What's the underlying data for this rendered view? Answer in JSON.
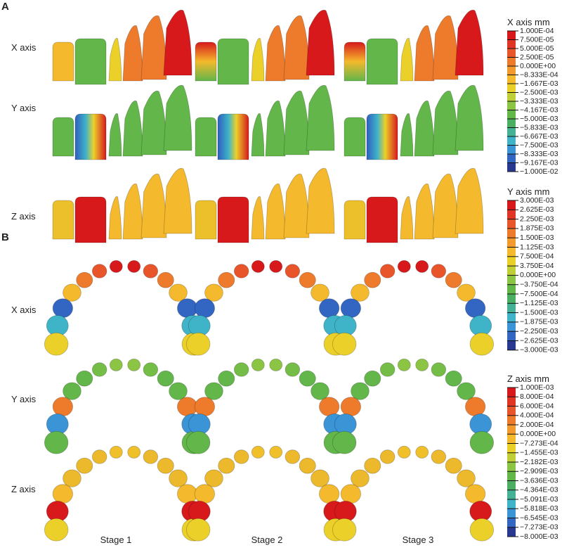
{
  "panel_labels": [
    "A",
    "B"
  ],
  "row_labels": {
    "A": [
      "X axis",
      "Y axis",
      "Z axis"
    ],
    "B": [
      "X axis",
      "Y axis",
      "Z axis"
    ]
  },
  "column_labels": [
    "Stage 1",
    "Stage 2",
    "Stage 3"
  ],
  "legend_colors": [
    "#d7191c",
    "#e03424",
    "#e8552a",
    "#ee7a2c",
    "#f29a2e",
    "#f4b92c",
    "#ecd02a",
    "#c0cf38",
    "#8cc443",
    "#62b64a",
    "#4bae62",
    "#45b296",
    "#3fb4c8",
    "#3a94d6",
    "#3366c2",
    "#28388f"
  ],
  "legends": [
    {
      "title": "X axis mm",
      "labels": [
        "1.000E-04",
        "7.500E-05",
        "5.000E-05",
        "2.500E-05",
        "0.000E+00",
        "−8.333E-04",
        "−1.667E-03",
        "−2.500E-03",
        "−3.333E-03",
        "−4.167E-03",
        "−5.000E-03",
        "−5.833E-03",
        "−6.667E-03",
        "−7.500E-03",
        "−8.333E-03",
        "−9.167E-03",
        "−1.000E-02"
      ]
    },
    {
      "title": "Y axis mm",
      "labels": [
        "3.000E-03",
        "2.625E-03",
        "2.250E-03",
        "1.875E-03",
        "1.500E-03",
        "1.125E-03",
        "7.500E-04",
        "3.750E-04",
        "0.000E+00",
        "−3.750E-04",
        "−7.500E-04",
        "−1.125E-03",
        "−1.500E-03",
        "−1.875E-03",
        "−2.250E-03",
        "−2.625E-03",
        "−3.000E-03"
      ]
    },
    {
      "title": "Z axis mm",
      "labels": [
        "1.000E-03",
        "8.000E-04",
        "6.000E-04",
        "4.000E-04",
        "2.000E-04",
        "0.000E+00",
        "−7.273E-04",
        "−1.455E-03",
        "−2.182E-03",
        "−2.909E-03",
        "−3.636E-03",
        "−4.364E-03",
        "−5.091E-03",
        "−5.818E-03",
        "−6.545E-03",
        "−7.273E-03",
        "−8.000E-03"
      ]
    }
  ]
}
